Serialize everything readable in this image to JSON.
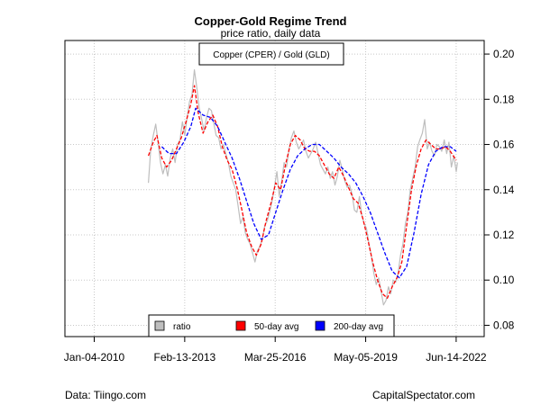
{
  "chart_data": {
    "type": "line",
    "title": "Copper-Gold Regime Trend",
    "subtitle": "price ratio, daily data",
    "series_label": "Copper (CPER) / Gold (GLD)",
    "xlabel": "",
    "ylabel": "",
    "x_ticks": [
      "Jan-04-2010",
      "Feb-13-2013",
      "Mar-25-2016",
      "May-05-2019",
      "Jun-14-2022"
    ],
    "y_ticks": [
      0.08,
      0.1,
      0.12,
      0.14,
      0.16,
      0.18,
      0.2
    ],
    "ylim": [
      0.075,
      0.206
    ],
    "xlim": [
      "2009-01-01",
      "2023-06-01"
    ],
    "y_axis_side": "right",
    "grid": true,
    "legend_position": "bottom-center",
    "legend": [
      {
        "name": "ratio",
        "color": "#bebebe"
      },
      {
        "name": "50-day avg",
        "color": "#ff0000"
      },
      {
        "name": "200-day avg",
        "color": "#0000ff"
      }
    ],
    "series": [
      {
        "name": "ratio",
        "color": "#bebebe",
        "style": "solid",
        "x": [
          "2011-11-15",
          "2011-12-15",
          "2012-01-15",
          "2012-02-15",
          "2012-03-15",
          "2012-04-15",
          "2012-05-15",
          "2012-06-15",
          "2012-07-15",
          "2012-08-15",
          "2012-09-15",
          "2012-10-15",
          "2012-11-15",
          "2012-12-15",
          "2013-01-15",
          "2013-02-15",
          "2013-03-15",
          "2013-04-15",
          "2013-05-15",
          "2013-06-15",
          "2013-07-15",
          "2013-08-15",
          "2013-09-15",
          "2013-10-15",
          "2013-11-15",
          "2013-12-15",
          "2014-01-15",
          "2014-02-15",
          "2014-03-15",
          "2014-04-15",
          "2014-05-15",
          "2014-06-15",
          "2014-07-15",
          "2014-08-15",
          "2014-09-15",
          "2014-10-15",
          "2014-11-15",
          "2014-12-15",
          "2015-01-15",
          "2015-02-15",
          "2015-03-15",
          "2015-04-15",
          "2015-05-15",
          "2015-06-15",
          "2015-07-15",
          "2015-08-15",
          "2015-09-15",
          "2015-10-15",
          "2015-11-15",
          "2015-12-15",
          "2016-01-15",
          "2016-02-15",
          "2016-03-15",
          "2016-04-15",
          "2016-05-15",
          "2016-06-15",
          "2016-07-15",
          "2016-08-15",
          "2016-09-15",
          "2016-10-15",
          "2016-11-15",
          "2016-12-15",
          "2017-01-15",
          "2017-02-15",
          "2017-03-15",
          "2017-04-15",
          "2017-05-15",
          "2017-06-15",
          "2017-07-15",
          "2017-08-15",
          "2017-09-15",
          "2017-10-15",
          "2017-11-15",
          "2017-12-15",
          "2018-01-15",
          "2018-02-15",
          "2018-03-15",
          "2018-04-15",
          "2018-05-15",
          "2018-06-15",
          "2018-07-15",
          "2018-08-15",
          "2018-09-15",
          "2018-10-15",
          "2018-11-15",
          "2018-12-15",
          "2019-01-15",
          "2019-02-15",
          "2019-03-15",
          "2019-04-15",
          "2019-05-15",
          "2019-06-15",
          "2019-07-15",
          "2019-08-15",
          "2019-09-15",
          "2019-10-15",
          "2019-11-15",
          "2019-12-15",
          "2020-01-15",
          "2020-02-15",
          "2020-03-15",
          "2020-04-15",
          "2020-05-15",
          "2020-06-15",
          "2020-07-15",
          "2020-08-15",
          "2020-09-15",
          "2020-10-15",
          "2020-11-15",
          "2020-12-15",
          "2021-01-15",
          "2021-02-15",
          "2021-03-15",
          "2021-04-15",
          "2021-05-15",
          "2021-06-15",
          "2021-07-15",
          "2021-08-15",
          "2021-09-15",
          "2021-10-15",
          "2021-11-15",
          "2021-12-15",
          "2022-01-15",
          "2022-02-15",
          "2022-03-15",
          "2022-04-15",
          "2022-05-15",
          "2022-06-15",
          "2022-07-01"
        ],
        "values": [
          0.143,
          0.158,
          0.164,
          0.169,
          0.161,
          0.152,
          0.147,
          0.151,
          0.146,
          0.154,
          0.158,
          0.152,
          0.16,
          0.162,
          0.17,
          0.164,
          0.172,
          0.179,
          0.182,
          0.193,
          0.185,
          0.176,
          0.171,
          0.166,
          0.172,
          0.176,
          0.175,
          0.169,
          0.164,
          0.163,
          0.158,
          0.16,
          0.156,
          0.152,
          0.146,
          0.143,
          0.14,
          0.133,
          0.125,
          0.128,
          0.121,
          0.118,
          0.116,
          0.112,
          0.108,
          0.113,
          0.115,
          0.118,
          0.124,
          0.126,
          0.13,
          0.135,
          0.141,
          0.148,
          0.137,
          0.144,
          0.152,
          0.15,
          0.158,
          0.163,
          0.166,
          0.161,
          0.158,
          0.16,
          0.162,
          0.157,
          0.154,
          0.156,
          0.158,
          0.161,
          0.156,
          0.151,
          0.149,
          0.147,
          0.15,
          0.145,
          0.148,
          0.142,
          0.146,
          0.153,
          0.149,
          0.144,
          0.141,
          0.142,
          0.138,
          0.131,
          0.13,
          0.137,
          0.129,
          0.125,
          0.123,
          0.116,
          0.111,
          0.103,
          0.098,
          0.101,
          0.095,
          0.089,
          0.091,
          0.097,
          0.094,
          0.1,
          0.099,
          0.103,
          0.111,
          0.116,
          0.125,
          0.13,
          0.14,
          0.145,
          0.15,
          0.159,
          0.162,
          0.165,
          0.171,
          0.158,
          0.161,
          0.157,
          0.155,
          0.16,
          0.159,
          0.157,
          0.162,
          0.156,
          0.161,
          0.15,
          0.155,
          0.148,
          0.152
        ]
      },
      {
        "name": "50-day avg",
        "color": "#ff0000",
        "style": "dashed",
        "x": [
          "2011-11-15",
          "2012-01-15",
          "2012-03-01",
          "2012-05-01",
          "2012-07-01",
          "2012-09-01",
          "2012-11-01",
          "2013-01-01",
          "2013-03-01",
          "2013-05-01",
          "2013-06-15",
          "2013-08-01",
          "2013-10-01",
          "2013-12-01",
          "2014-02-01",
          "2014-04-01",
          "2014-06-01",
          "2014-08-01",
          "2014-10-01",
          "2014-12-01",
          "2015-02-01",
          "2015-04-01",
          "2015-06-01",
          "2015-08-01",
          "2015-10-01",
          "2015-12-01",
          "2016-02-01",
          "2016-04-01",
          "2016-06-01",
          "2016-08-01",
          "2016-10-01",
          "2016-12-01",
          "2017-02-01",
          "2017-04-01",
          "2017-06-01",
          "2017-08-01",
          "2017-10-01",
          "2017-12-01",
          "2018-02-01",
          "2018-04-01",
          "2018-06-01",
          "2018-08-01",
          "2018-10-01",
          "2018-12-01",
          "2019-02-01",
          "2019-04-01",
          "2019-06-01",
          "2019-08-01",
          "2019-10-01",
          "2019-12-01",
          "2020-02-01",
          "2020-04-01",
          "2020-06-01",
          "2020-08-01",
          "2020-10-01",
          "2020-12-01",
          "2021-02-01",
          "2021-04-01",
          "2021-06-01",
          "2021-08-01",
          "2021-10-01",
          "2021-12-01",
          "2022-02-01",
          "2022-04-01",
          "2022-06-15"
        ],
        "values": [
          0.155,
          0.161,
          0.164,
          0.154,
          0.15,
          0.153,
          0.158,
          0.163,
          0.17,
          0.178,
          0.186,
          0.174,
          0.165,
          0.17,
          0.173,
          0.168,
          0.159,
          0.153,
          0.149,
          0.141,
          0.131,
          0.121,
          0.115,
          0.111,
          0.116,
          0.126,
          0.134,
          0.143,
          0.14,
          0.151,
          0.16,
          0.164,
          0.162,
          0.158,
          0.157,
          0.157,
          0.155,
          0.151,
          0.147,
          0.145,
          0.15,
          0.146,
          0.141,
          0.136,
          0.134,
          0.127,
          0.118,
          0.108,
          0.1,
          0.094,
          0.092,
          0.097,
          0.101,
          0.108,
          0.124,
          0.14,
          0.151,
          0.158,
          0.162,
          0.16,
          0.158,
          0.158,
          0.159,
          0.157,
          0.153
        ]
      },
      {
        "name": "200-day avg",
        "color": "#0000ff",
        "style": "dashed",
        "x": [
          "2012-05-01",
          "2012-08-01",
          "2012-11-01",
          "2013-02-01",
          "2013-05-01",
          "2013-07-01",
          "2013-10-01",
          "2014-01-01",
          "2014-04-01",
          "2014-07-01",
          "2014-10-01",
          "2015-01-01",
          "2015-04-01",
          "2015-07-01",
          "2015-10-01",
          "2016-01-01",
          "2016-04-01",
          "2016-07-01",
          "2016-10-01",
          "2017-01-01",
          "2017-04-01",
          "2017-07-01",
          "2017-10-01",
          "2018-01-01",
          "2018-04-01",
          "2018-07-01",
          "2018-10-01",
          "2019-01-01",
          "2019-04-01",
          "2019-07-01",
          "2019-10-01",
          "2020-01-01",
          "2020-04-01",
          "2020-07-01",
          "2020-10-01",
          "2021-01-01",
          "2021-04-01",
          "2021-07-01",
          "2021-10-01",
          "2022-01-01",
          "2022-04-01",
          "2022-06-15"
        ],
        "values": [
          0.159,
          0.156,
          0.156,
          0.161,
          0.168,
          0.176,
          0.173,
          0.172,
          0.168,
          0.161,
          0.154,
          0.145,
          0.135,
          0.125,
          0.118,
          0.12,
          0.13,
          0.14,
          0.149,
          0.155,
          0.158,
          0.16,
          0.16,
          0.157,
          0.154,
          0.15,
          0.147,
          0.143,
          0.137,
          0.13,
          0.121,
          0.112,
          0.104,
          0.101,
          0.106,
          0.121,
          0.138,
          0.151,
          0.157,
          0.159,
          0.159,
          0.157
        ]
      }
    ]
  },
  "footer": {
    "left": "Data: Tiingo.com",
    "right": "CapitalSpectator.com"
  }
}
